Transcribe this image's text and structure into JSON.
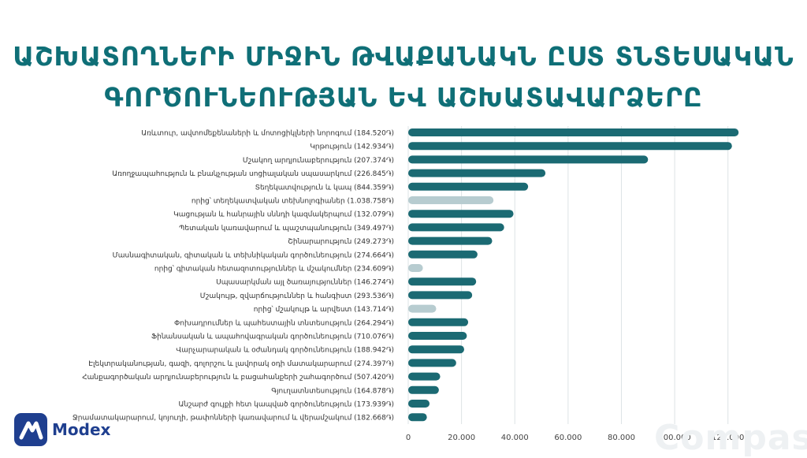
{
  "title_line1": "ԱՇԽԱՏՈՂՆԵՐԻ ՄԻՋԻՆ ԹՎԱՔԱՆԱԿՆ  ԸՍՏ ՏՆՏԵՍԱԿԱՆ",
  "title_line2": "ԳՈՐԾՈՒՆԵՈՒԹՅԱՆ ԵՎ  ԱՇԽԱՏԱՎԱՐՁԵՐԸ",
  "logo_text": "Modex",
  "watermark_text": "Compass",
  "colors": {
    "bar_main": "#1b6a73",
    "bar_sub": "#b7ccd0",
    "title": "#0f6f77",
    "logo": "#1f3f8f"
  },
  "chart_data": {
    "type": "bar",
    "orientation": "horizontal",
    "xlim": [
      0,
      126000
    ],
    "xticks": [
      0,
      20000,
      40000,
      60000,
      80000,
      100000,
      120000
    ],
    "xtick_labels": [
      "0",
      "20.000",
      "40.000",
      "60.000",
      "80.000",
      "100.000",
      "120.000"
    ],
    "grid": true,
    "categories": [
      "Առևտուր, ավտոմեքենաների և մոտոցիկլների նորոգում (184.520֏)",
      "Կրթություն (142.934֏)",
      "Մշակող արդյունաբերություն (207.374֏)",
      "Առողջապահություն և բնակչության սոցիալական սպասարկում (226.845֏)",
      "Տեղեկատվություն և կապ (844.359֏)",
      "որից՝ տեղեկատվական տեխնոլոգիաներ (1.038.758֏)",
      "Կացության և հանրային սննդի կազմակերպում (132.079֏)",
      "Պետական կառավարում և պաշտպանություն (349.497֏)",
      "Շինարարություն (249.273֏)",
      "Մասնագիտական, գիտական և տեխնիկական գործունեություն (274.664֏)",
      "որից՝ գիտական հետազոտություններ և մշակումներ (234.609֏)",
      "Սպասարկման այլ ծառայություններ (146.274֏)",
      "Մշակույթ, զվարճություններ և հանգիստ (293.536֏)",
      "որից՝ մշակույթ և արվեստ (143.714֏)",
      "Փոխադրումներ և պահեստային տնտեսություն (264.294֏)",
      "Ֆինանսական և ապահովագրական գործունեություն (710.076֏)",
      "Վարչարարական և օժանդակ գործունեություն (188.942֏)",
      "Էլեկտրականության, գազի, գոլորշու և լավորակ օդի մատակարարում (274.397֏)",
      "Հանքագործական արդյունաբերություն և բացահանքերի շահագործում (507.420֏)",
      "Գյուղատնտեսություն (164.878֏)",
      "Անշարժ գույքի հետ կապված գործունեություն (173.939֏)",
      "Ջրամատակարարում, կոյուղի, թափոնների կառավարում և վերամշակում (182.668֏)"
    ],
    "values": [
      124000,
      121500,
      90000,
      51500,
      45000,
      32000,
      39500,
      36000,
      31500,
      26000,
      5500,
      25500,
      24000,
      10500,
      22500,
      22000,
      21000,
      18000,
      12000,
      11500,
      8000,
      7000
    ],
    "subcategory": [
      false,
      false,
      false,
      false,
      false,
      true,
      false,
      false,
      false,
      false,
      true,
      false,
      false,
      true,
      false,
      false,
      false,
      false,
      false,
      false,
      false,
      false
    ]
  }
}
